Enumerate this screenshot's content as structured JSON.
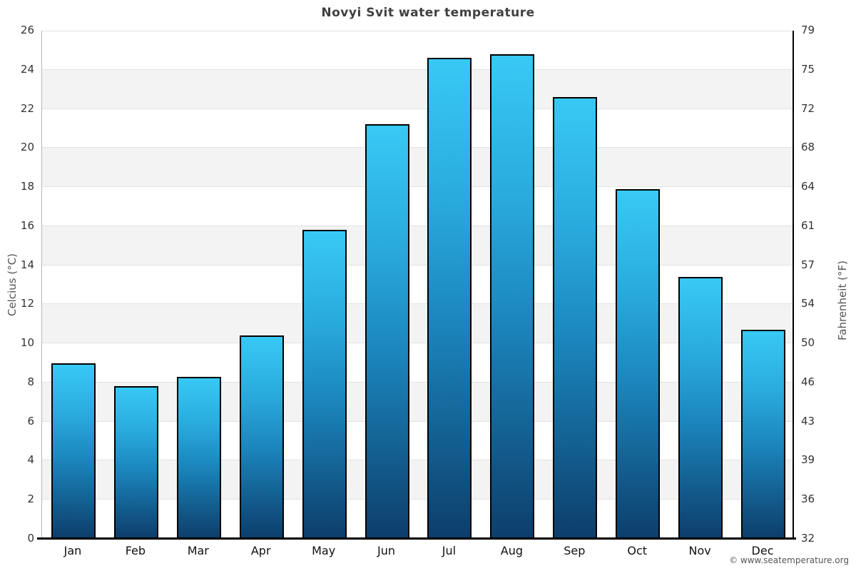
{
  "chart_data": {
    "type": "bar",
    "title": "Novyi Svit water temperature",
    "categories": [
      "Jan",
      "Feb",
      "Mar",
      "Apr",
      "May",
      "Jun",
      "Jul",
      "Aug",
      "Sep",
      "Oct",
      "Nov",
      "Dec"
    ],
    "values": [
      9.0,
      7.8,
      8.3,
      10.4,
      15.8,
      21.2,
      24.6,
      24.8,
      22.6,
      17.9,
      13.4,
      10.7
    ],
    "xlabel": "",
    "ylabel_left": "Celcius (°C)",
    "ylabel_right": "Fahrenheit (°F)",
    "ylim": [
      0,
      26
    ],
    "celsius_ticks": [
      0,
      2,
      4,
      6,
      8,
      10,
      12,
      14,
      16,
      18,
      20,
      22,
      24,
      26
    ],
    "fahrenheit_tick_labels": [
      32,
      36,
      39,
      43,
      46,
      50,
      54,
      57,
      61,
      64,
      68,
      72,
      75,
      79
    ],
    "grid": "horizontal",
    "legend": "none",
    "band_pattern": "alternating gray bands every 2 degrees",
    "colors": {
      "bar_gradient_top": "#38c9f5",
      "bar_gradient_mid": "#1b86bd",
      "bar_gradient_bottom": "#0d3e6b",
      "bar_border": "#000000",
      "band_gray": "#f3f3f3",
      "gridline": "#e2e2e2",
      "axis_black": "#000000",
      "title_color": "#404040"
    }
  },
  "footer": {
    "copyright": "© www.seatemperature.org"
  }
}
